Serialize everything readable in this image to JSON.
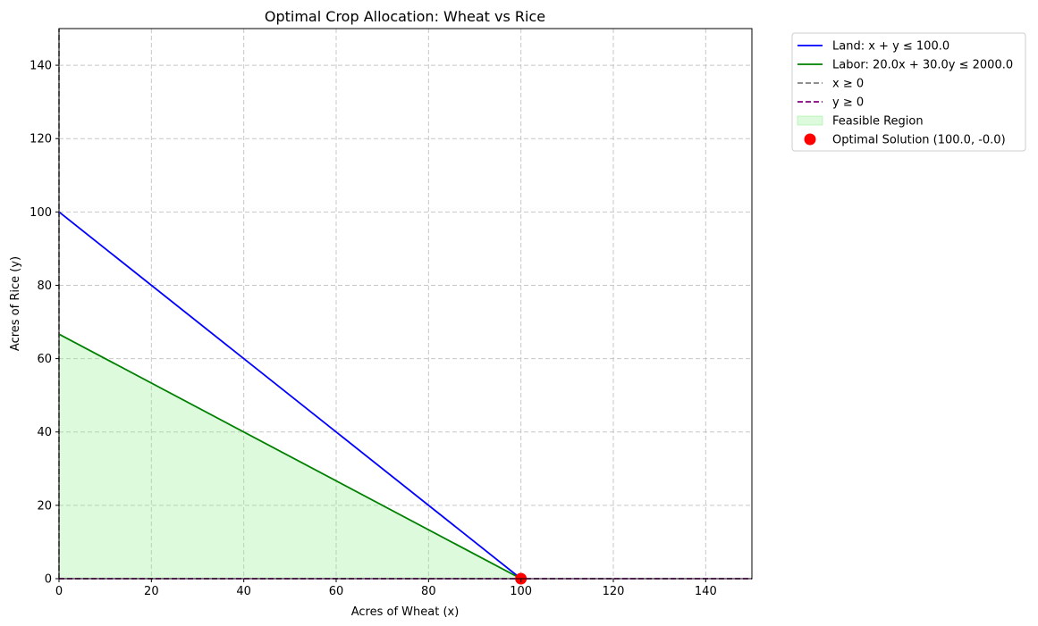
{
  "chart_data": {
    "type": "line",
    "title": "Optimal Crop Allocation: Wheat vs Rice",
    "xlabel": "Acres of Wheat (x)",
    "ylabel": "Acres of Rice (y)",
    "xlim": [
      0,
      150
    ],
    "ylim": [
      0,
      150
    ],
    "xticks": [
      "0",
      "20",
      "40",
      "60",
      "80",
      "100",
      "120",
      "140"
    ],
    "yticks": [
      "0",
      "20",
      "40",
      "60",
      "80",
      "100",
      "120",
      "140"
    ],
    "grid": true,
    "legend_placement": "outside-upper-right",
    "series": [
      {
        "name": "Land: x + y ≤ 100.0",
        "kind": "line",
        "color": "#0000ff",
        "style": "solid",
        "points": [
          [
            0,
            100
          ],
          [
            100,
            0
          ]
        ]
      },
      {
        "name": "Labor: 20.0x + 30.0y ≤ 2000.0",
        "kind": "line",
        "color": "#008000",
        "style": "solid",
        "points": [
          [
            0,
            66.67
          ],
          [
            100,
            0
          ]
        ]
      },
      {
        "name": "x ≥ 0",
        "kind": "line",
        "color": "#808080",
        "style": "dashed",
        "points": [
          [
            0,
            0
          ],
          [
            0,
            150
          ]
        ]
      },
      {
        "name": "y ≥ 0",
        "kind": "line",
        "color": "#800080",
        "style": "dashed",
        "points": [
          [
            0,
            0
          ],
          [
            150,
            0
          ]
        ]
      },
      {
        "name": "Feasible Region",
        "kind": "area",
        "color": "#90ee90",
        "opacity": 0.3,
        "points": [
          [
            0,
            0
          ],
          [
            0,
            66.67
          ],
          [
            100,
            0
          ]
        ]
      },
      {
        "name": "Optimal Solution (100.0, -0.0)",
        "kind": "point",
        "color": "#ff0000",
        "points": [
          [
            100,
            0
          ]
        ]
      }
    ]
  }
}
